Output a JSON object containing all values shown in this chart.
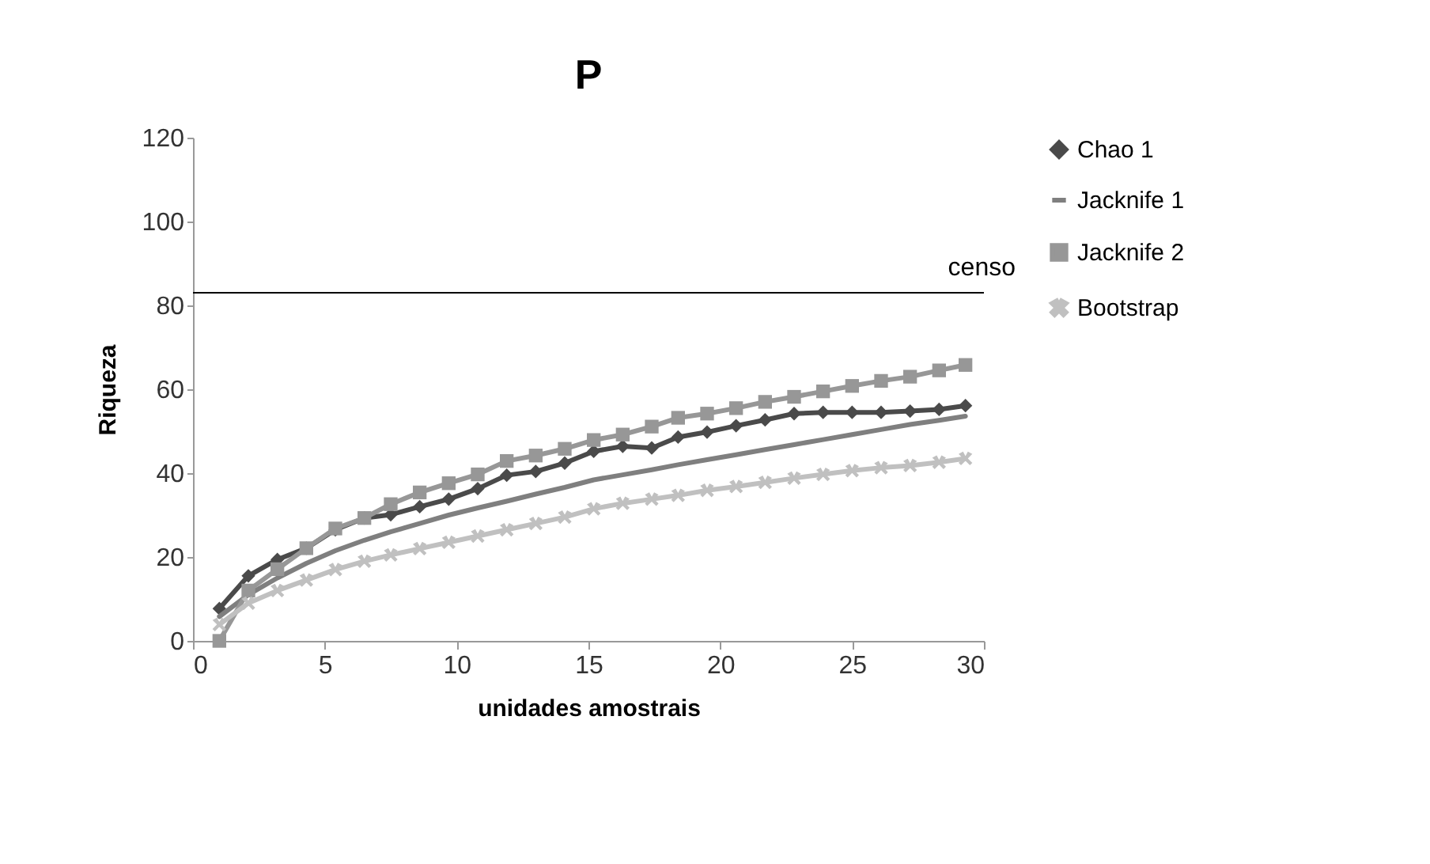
{
  "chart_data": {
    "type": "line",
    "title": "P",
    "xlabel": "unidades amostrais",
    "ylabel": "Riqueza",
    "x": [
      1.0,
      2.1,
      3.2,
      4.3,
      5.4,
      6.5,
      7.5,
      8.6,
      9.7,
      10.8,
      11.9,
      13.0,
      14.1,
      15.2,
      16.3,
      17.4,
      18.4,
      19.5,
      20.6,
      21.7,
      22.8,
      23.9,
      25.0,
      26.1,
      27.2,
      28.3,
      29.3
    ],
    "series": [
      {
        "name": "Chao 1",
        "color": "#4a4a4a",
        "marker": "diamond",
        "values": [
          7.7,
          15.5,
          19.4,
          22.1,
          26.5,
          29.3,
          30.1,
          32,
          33.8,
          36.3,
          39.5,
          40.4,
          42.4,
          45.2,
          46.4,
          46,
          48.6,
          49.8,
          51.3,
          52.7,
          54.2,
          54.5,
          54.5,
          54.5,
          54.8,
          55.2,
          56.1
        ]
      },
      {
        "name": "Jacknife 1",
        "color": "#7f7f7f",
        "marker": "none",
        "values": [
          5.8,
          11,
          15,
          18.5,
          21.5,
          24,
          26,
          28,
          30,
          31.7,
          33.3,
          35,
          36.6,
          38.4,
          39.6,
          40.8,
          42,
          43.2,
          44.4,
          45.6,
          46.8,
          48,
          49.2,
          50.4,
          51.6,
          52.6,
          53.6
        ]
      },
      {
        "name": "Jacknife 2",
        "color": "#979797",
        "marker": "square",
        "values": [
          0,
          12,
          17.1,
          22.1,
          26.8,
          29.3,
          32.6,
          35.4,
          37.6,
          39.7,
          42.9,
          44.2,
          45.8,
          47.9,
          49.2,
          51.1,
          53.2,
          54.2,
          55.5,
          57,
          58.2,
          59.5,
          60.8,
          62,
          63,
          64.5,
          65.8
        ]
      },
      {
        "name": "Bootstrap",
        "color": "#c0c0c0",
        "marker": "cross",
        "values": [
          3.9,
          9,
          12,
          14.5,
          17,
          19,
          20.5,
          22,
          23.5,
          25,
          26.5,
          28,
          29.5,
          31.5,
          32.8,
          33.8,
          34.7,
          35.9,
          36.8,
          37.8,
          38.8,
          39.7,
          40.6,
          41.3,
          41.8,
          42.6,
          43.5
        ]
      }
    ],
    "ref_lines": [
      {
        "axis": "y",
        "value": 83,
        "label": "censo",
        "color": "#000000"
      }
    ],
    "xlim": [
      0,
      30
    ],
    "xticks": [
      0,
      5,
      10,
      15,
      20,
      25,
      30
    ],
    "ylim": [
      0,
      120
    ],
    "yticks": [
      0,
      20,
      40,
      60,
      80,
      100,
      120
    ],
    "grid": false,
    "legend": "right"
  }
}
